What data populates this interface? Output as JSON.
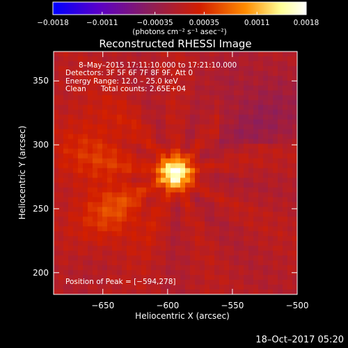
{
  "chart_data": {
    "type": "heatmap",
    "title": "Reconstructed RHESSI Image",
    "xlabel": "Heliocentric X (arcsec)",
    "ylabel": "Heliocentric Y (arcsec)",
    "xlim": [
      -688,
      -500
    ],
    "ylim": [
      183,
      373
    ],
    "xticks": [
      -650,
      -600,
      -550,
      -500
    ],
    "yticks": [
      200,
      250,
      300,
      350
    ],
    "xtick_labels": [
      "−650",
      "−600",
      "−550",
      "−500"
    ],
    "ytick_labels": [
      "200",
      "250",
      "300",
      "350"
    ],
    "colorbar": {
      "range": [
        -0.0018,
        0.0018
      ],
      "ticks": [
        -0.0018,
        -0.0011,
        -0.00035,
        0.00035,
        0.0011,
        0.0018
      ],
      "tick_labels": [
        "−0.0018",
        "−0.0011",
        "−0.00035",
        "0.00035",
        "0.0011",
        "0.0018"
      ],
      "units_label": "(photons cm⁻² s⁻¹ asec⁻²)",
      "colors": [
        "#0000ff",
        "#5a00c8",
        "#8c1e5a",
        "#d21e00",
        "#ff8c00",
        "#ffff96",
        "#ffffff"
      ]
    },
    "peak": {
      "x": -594,
      "y": 278,
      "value": 0.0018
    },
    "sources": [
      {
        "x": -594,
        "y": 278,
        "sigma": 9,
        "amplitude": 0.0018
      },
      {
        "x": -640,
        "y": 247,
        "sigma": 20,
        "amplitude": 0.00045
      },
      {
        "x": -655,
        "y": 300,
        "sigma": 24,
        "amplitude": 0.00035
      }
    ],
    "annotations": {
      "line1": "8–May–2015 17:11:10.000 to 17:21:10.000",
      "line2": "Detectors: 3F 5F 6F 7F 8F 9F, Att 0",
      "line3": "Energy Range: 12.0 – 25.0 keV",
      "line4_method": "Clean",
      "line4_counts": "Total counts: 2.65E+04",
      "peak_text": "Position of Peak = [−594,278]"
    }
  },
  "footer": {
    "timestamp": "18–Oct–2017 05:20"
  }
}
